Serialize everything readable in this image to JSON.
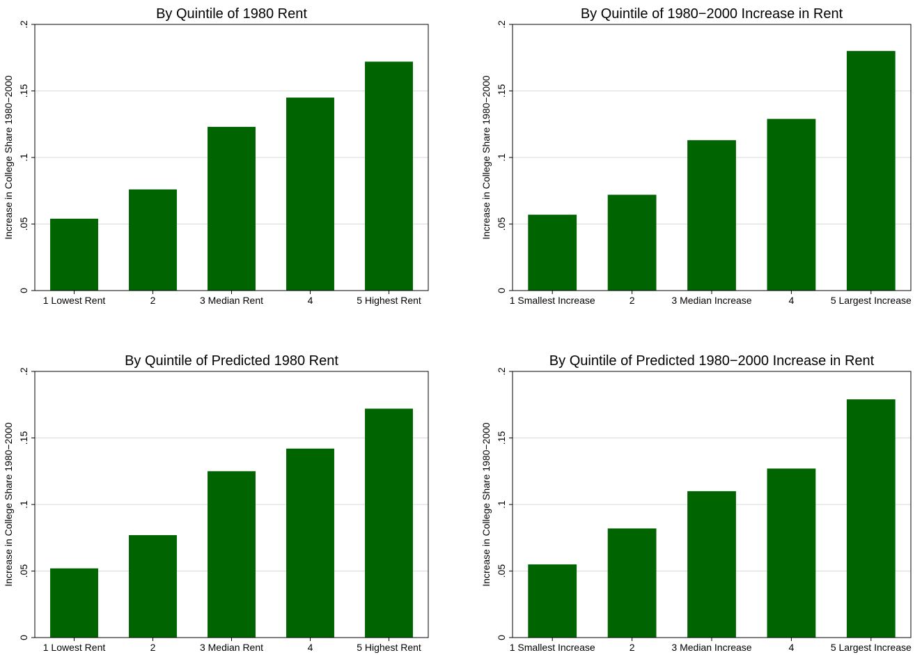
{
  "chart_data": [
    {
      "type": "bar",
      "title": "By Quintile of 1980 Rent",
      "ylabel": "Increase in College Share 1980−2000",
      "categories": [
        "1 Lowest Rent",
        "2",
        "3 Median Rent",
        "4",
        "5 Highest Rent"
      ],
      "values": [
        0.054,
        0.076,
        0.123,
        0.145,
        0.172
      ],
      "ylim": [
        0,
        0.2
      ],
      "yticks": [
        0,
        0.05,
        0.1,
        0.15,
        0.2
      ],
      "ytick_labels": [
        "0",
        ".05",
        ".1",
        ".15",
        ".2"
      ],
      "grid": true,
      "bar_color": "#006400"
    },
    {
      "type": "bar",
      "title": "By Quintile of 1980−2000 Increase in Rent",
      "ylabel": "Increase in College Share 1980−2000",
      "categories": [
        "1 Smallest Increase",
        "2",
        "3 Median Increase",
        "4",
        "5 Largest Increase"
      ],
      "values": [
        0.057,
        0.072,
        0.113,
        0.129,
        0.18
      ],
      "ylim": [
        0,
        0.2
      ],
      "yticks": [
        0,
        0.05,
        0.1,
        0.15,
        0.2
      ],
      "ytick_labels": [
        "0",
        ".05",
        ".1",
        ".15",
        ".2"
      ],
      "grid": true,
      "bar_color": "#006400"
    },
    {
      "type": "bar",
      "title": "By Quintile of Predicted 1980 Rent",
      "ylabel": "Increase in College Share 1980−2000",
      "categories": [
        "1 Lowest Rent",
        "2",
        "3 Median Rent",
        "4",
        "5 Highest Rent"
      ],
      "values": [
        0.052,
        0.077,
        0.125,
        0.142,
        0.172
      ],
      "ylim": [
        0,
        0.2
      ],
      "yticks": [
        0,
        0.05,
        0.1,
        0.15,
        0.2
      ],
      "ytick_labels": [
        "0",
        ".05",
        ".1",
        ".15",
        ".2"
      ],
      "grid": true,
      "bar_color": "#006400"
    },
    {
      "type": "bar",
      "title": "By Quintile of Predicted 1980−2000 Increase in Rent",
      "ylabel": "Increase in College Share 1980−2000",
      "categories": [
        "1 Smallest Increase",
        "2",
        "3 Median Increase",
        "4",
        "5 Largest Increase"
      ],
      "values": [
        0.055,
        0.082,
        0.11,
        0.127,
        0.179
      ],
      "ylim": [
        0,
        0.2
      ],
      "yticks": [
        0,
        0.05,
        0.1,
        0.15,
        0.2
      ],
      "ytick_labels": [
        "0",
        ".05",
        ".1",
        ".15",
        ".2"
      ],
      "grid": true,
      "bar_color": "#006400"
    }
  ]
}
